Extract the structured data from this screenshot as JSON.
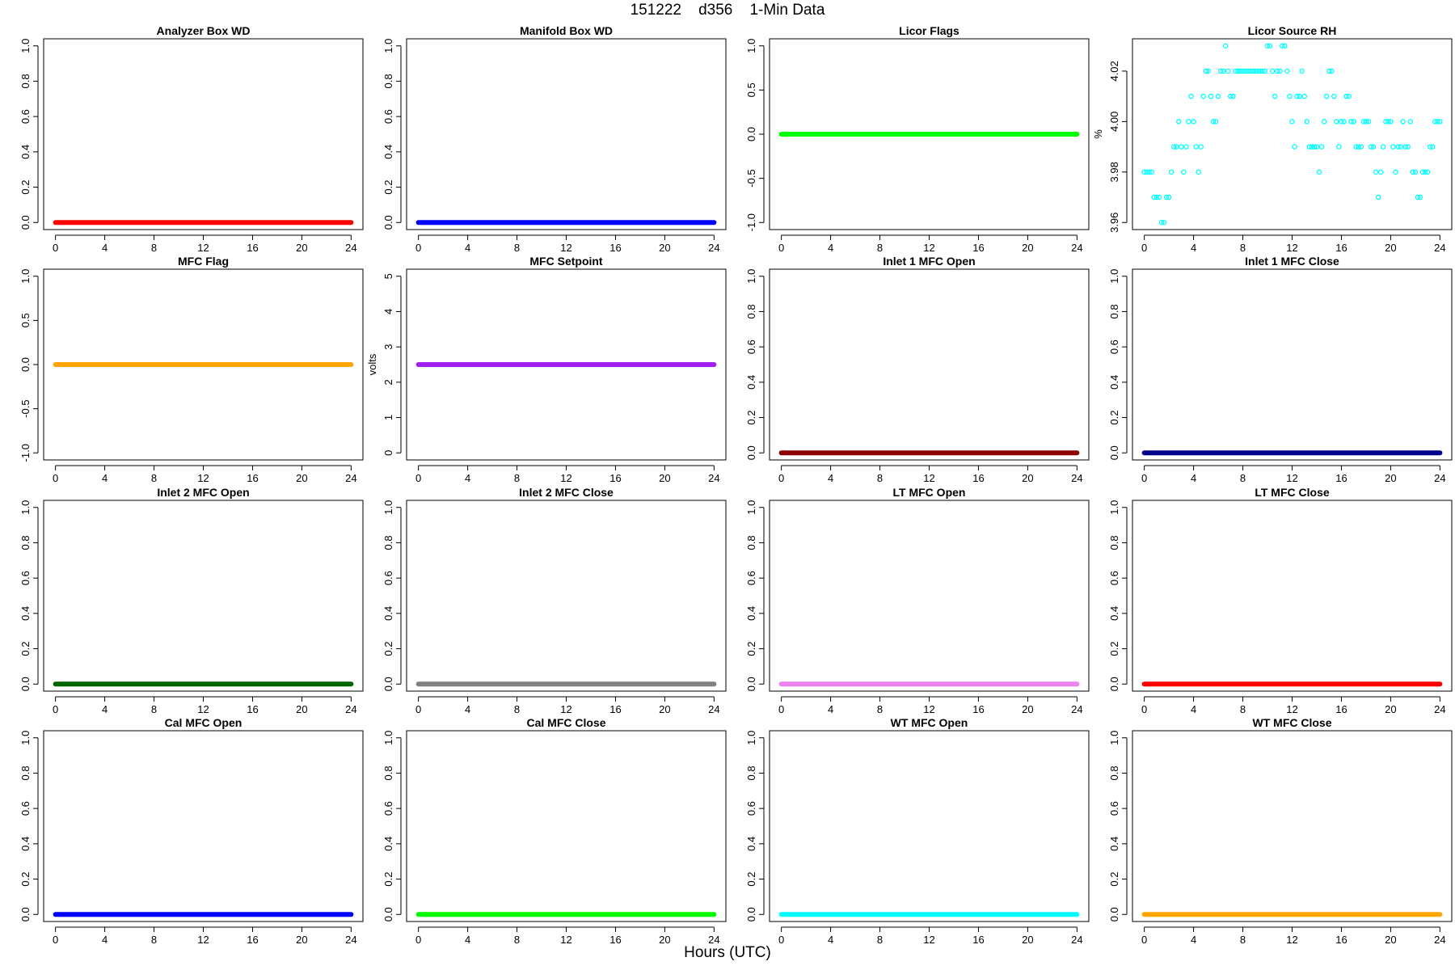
{
  "page": {
    "title": "151222    d356    1-Min Data",
    "xlabel": "Hours (UTC)"
  },
  "chart_data": [
    {
      "type": "line",
      "title": "Analyzer Box WD",
      "ylabel": "",
      "xlim": [
        0,
        24
      ],
      "xticks": [
        0,
        4,
        8,
        12,
        16,
        20,
        24
      ],
      "ylim": [
        0,
        1
      ],
      "yticks": [
        "0.0",
        "0.2",
        "0.4",
        "0.6",
        "0.8",
        "1.0"
      ],
      "series": [
        {
          "color": "#ff0000",
          "x": [
            0,
            24
          ],
          "y": [
            0,
            0
          ]
        }
      ]
    },
    {
      "type": "line",
      "title": "Manifold Box WD",
      "ylabel": "",
      "xlim": [
        0,
        24
      ],
      "xticks": [
        0,
        4,
        8,
        12,
        16,
        20,
        24
      ],
      "ylim": [
        0,
        1
      ],
      "yticks": [
        "0.0",
        "0.2",
        "0.4",
        "0.6",
        "0.8",
        "1.0"
      ],
      "series": [
        {
          "color": "#0000ff",
          "x": [
            0,
            24
          ],
          "y": [
            0,
            0
          ]
        }
      ]
    },
    {
      "type": "line",
      "title": "Licor Flags",
      "ylabel": "",
      "xlim": [
        0,
        24
      ],
      "xticks": [
        0,
        4,
        8,
        12,
        16,
        20,
        24
      ],
      "ylim": [
        -1,
        1
      ],
      "yticks": [
        "-1.0",
        "-0.5",
        "0.0",
        "0.5",
        "1.0"
      ],
      "series": [
        {
          "color": "#00ff00",
          "x": [
            0,
            24
          ],
          "y": [
            0,
            0
          ]
        }
      ]
    },
    {
      "type": "scatter",
      "title": "Licor Source RH",
      "ylabel": "%",
      "xlim": [
        0,
        24
      ],
      "xticks": [
        0,
        4,
        8,
        12,
        16,
        20,
        24
      ],
      "ylim": [
        3.96,
        4.03
      ],
      "yticks": [
        "3.96",
        "3.98",
        "4.00",
        "4.02"
      ],
      "series": [
        {
          "color": "#00ffff",
          "x": [
            0.0,
            0.2,
            0.4,
            0.6,
            0.8,
            1.0,
            1.2,
            1.4,
            1.6,
            1.8,
            2.0,
            2.2,
            2.4,
            2.6,
            2.8,
            3.0,
            3.2,
            3.4,
            3.6,
            3.8,
            4.0,
            4.2,
            4.4,
            4.6,
            4.8,
            5.0,
            5.2,
            5.4,
            5.6,
            5.8,
            6.0,
            6.2,
            6.4,
            6.6,
            6.8,
            7.0,
            7.2,
            7.4,
            7.6,
            7.8,
            8.0,
            8.2,
            8.4,
            8.6,
            8.8,
            9.0,
            9.2,
            9.4,
            9.6,
            9.8,
            10.0,
            10.2,
            10.4,
            10.6,
            10.8,
            11.0,
            11.2,
            11.4,
            11.6,
            11.8,
            12.0,
            12.2,
            12.4,
            12.6,
            12.8,
            13.0,
            13.2,
            13.4,
            13.6,
            13.8,
            14.0,
            14.2,
            14.4,
            14.6,
            14.8,
            15.0,
            15.2,
            15.4,
            15.6,
            15.8,
            16.0,
            16.2,
            16.4,
            16.6,
            16.8,
            17.0,
            17.2,
            17.4,
            17.6,
            17.8,
            18.0,
            18.2,
            18.4,
            18.6,
            18.8,
            19.0,
            19.2,
            19.4,
            19.6,
            19.8,
            20.0,
            20.2,
            20.4,
            20.6,
            20.8,
            21.0,
            21.2,
            21.4,
            21.6,
            21.8,
            22.0,
            22.2,
            22.4,
            22.6,
            22.8,
            23.0,
            23.2,
            23.4,
            23.6,
            23.8,
            24.0
          ],
          "y": [
            3.98,
            3.98,
            3.98,
            3.98,
            3.97,
            3.97,
            3.97,
            3.96,
            3.96,
            3.97,
            3.97,
            3.98,
            3.99,
            3.99,
            4.0,
            3.99,
            3.98,
            3.99,
            4.0,
            4.01,
            4.0,
            3.99,
            3.98,
            3.99,
            4.01,
            4.02,
            4.02,
            4.01,
            4.0,
            4.0,
            4.01,
            4.02,
            4.02,
            4.03,
            4.02,
            4.01,
            4.01,
            4.02,
            4.02,
            4.02,
            4.02,
            4.02,
            4.02,
            4.02,
            4.02,
            4.02,
            4.02,
            4.02,
            4.02,
            4.02,
            4.03,
            4.03,
            4.02,
            4.01,
            4.02,
            4.02,
            4.03,
            4.03,
            4.02,
            4.01,
            4.0,
            3.99,
            4.01,
            4.01,
            4.02,
            4.01,
            4.0,
            3.99,
            3.99,
            3.99,
            3.99,
            3.98,
            3.99,
            4.0,
            4.01,
            4.02,
            4.02,
            4.01,
            4.0,
            3.99,
            4.0,
            4.0,
            4.01,
            4.01,
            4.0,
            4.0,
            3.99,
            3.99,
            3.99,
            4.0,
            4.0,
            4.0,
            3.99,
            3.99,
            3.98,
            3.97,
            3.98,
            3.99,
            4.0,
            4.0,
            4.0,
            3.99,
            3.98,
            3.99,
            3.99,
            4.0,
            3.99,
            3.99,
            4.0,
            3.98,
            3.98,
            3.97,
            3.97,
            3.98,
            3.98,
            3.98,
            3.99,
            3.99,
            4.0,
            4.0,
            4.0
          ]
        }
      ]
    },
    {
      "type": "line",
      "title": "MFC Flag",
      "ylabel": "",
      "xlim": [
        0,
        24
      ],
      "xticks": [
        0,
        4,
        8,
        12,
        16,
        20,
        24
      ],
      "ylim": [
        -1,
        1
      ],
      "yticks": [
        "-1.0",
        "-0.5",
        "0.0",
        "0.5",
        "1.0"
      ],
      "series": [
        {
          "color": "#ffa500",
          "x": [
            0,
            24
          ],
          "y": [
            0,
            0
          ]
        }
      ]
    },
    {
      "type": "line",
      "title": "MFC Setpoint",
      "ylabel": "volts",
      "xlim": [
        0,
        24
      ],
      "xticks": [
        0,
        4,
        8,
        12,
        16,
        20,
        24
      ],
      "ylim": [
        0,
        5
      ],
      "yticks": [
        "0",
        "1",
        "2",
        "3",
        "4",
        "5"
      ],
      "series": [
        {
          "color": "#a020f0",
          "x": [
            0,
            24
          ],
          "y": [
            2.5,
            2.5
          ]
        }
      ]
    },
    {
      "type": "line",
      "title": "Inlet 1 MFC Open",
      "ylabel": "",
      "xlim": [
        0,
        24
      ],
      "xticks": [
        0,
        4,
        8,
        12,
        16,
        20,
        24
      ],
      "ylim": [
        0,
        1
      ],
      "yticks": [
        "0.0",
        "0.2",
        "0.4",
        "0.6",
        "0.8",
        "1.0"
      ],
      "series": [
        {
          "color": "#8b0000",
          "x": [
            0,
            24
          ],
          "y": [
            0,
            0
          ]
        }
      ]
    },
    {
      "type": "line",
      "title": "Inlet 1 MFC Close",
      "ylabel": "",
      "xlim": [
        0,
        24
      ],
      "xticks": [
        0,
        4,
        8,
        12,
        16,
        20,
        24
      ],
      "ylim": [
        0,
        1
      ],
      "yticks": [
        "0.0",
        "0.2",
        "0.4",
        "0.6",
        "0.8",
        "1.0"
      ],
      "series": [
        {
          "color": "#00008b",
          "x": [
            0,
            24
          ],
          "y": [
            0,
            0
          ]
        }
      ]
    },
    {
      "type": "line",
      "title": "Inlet 2 MFC Open",
      "ylabel": "",
      "xlim": [
        0,
        24
      ],
      "xticks": [
        0,
        4,
        8,
        12,
        16,
        20,
        24
      ],
      "ylim": [
        0,
        1
      ],
      "yticks": [
        "0.0",
        "0.2",
        "0.4",
        "0.6",
        "0.8",
        "1.0"
      ],
      "series": [
        {
          "color": "#006400",
          "x": [
            0,
            24
          ],
          "y": [
            0,
            0
          ]
        }
      ]
    },
    {
      "type": "line",
      "title": "Inlet 2 MFC Close",
      "ylabel": "",
      "xlim": [
        0,
        24
      ],
      "xticks": [
        0,
        4,
        8,
        12,
        16,
        20,
        24
      ],
      "ylim": [
        0,
        1
      ],
      "yticks": [
        "0.0",
        "0.2",
        "0.4",
        "0.6",
        "0.8",
        "1.0"
      ],
      "series": [
        {
          "color": "#808080",
          "x": [
            0,
            24
          ],
          "y": [
            0,
            0
          ]
        }
      ]
    },
    {
      "type": "line",
      "title": "LT MFC Open",
      "ylabel": "",
      "xlim": [
        0,
        24
      ],
      "xticks": [
        0,
        4,
        8,
        12,
        16,
        20,
        24
      ],
      "ylim": [
        0,
        1
      ],
      "yticks": [
        "0.0",
        "0.2",
        "0.4",
        "0.6",
        "0.8",
        "1.0"
      ],
      "series": [
        {
          "color": "#ee82ee",
          "x": [
            0,
            24
          ],
          "y": [
            0,
            0
          ]
        }
      ]
    },
    {
      "type": "line",
      "title": "LT MFC Close",
      "ylabel": "",
      "xlim": [
        0,
        24
      ],
      "xticks": [
        0,
        4,
        8,
        12,
        16,
        20,
        24
      ],
      "ylim": [
        0,
        1
      ],
      "yticks": [
        "0.0",
        "0.2",
        "0.4",
        "0.6",
        "0.8",
        "1.0"
      ],
      "series": [
        {
          "color": "#ff0000",
          "x": [
            0,
            24
          ],
          "y": [
            0,
            0
          ]
        }
      ]
    },
    {
      "type": "line",
      "title": "Cal MFC Open",
      "ylabel": "",
      "xlim": [
        0,
        24
      ],
      "xticks": [
        0,
        4,
        8,
        12,
        16,
        20,
        24
      ],
      "ylim": [
        0,
        1
      ],
      "yticks": [
        "0.0",
        "0.2",
        "0.4",
        "0.6",
        "0.8",
        "1.0"
      ],
      "series": [
        {
          "color": "#0000ff",
          "x": [
            0,
            24
          ],
          "y": [
            0,
            0
          ]
        }
      ]
    },
    {
      "type": "line",
      "title": "Cal MFC Close",
      "ylabel": "",
      "xlim": [
        0,
        24
      ],
      "xticks": [
        0,
        4,
        8,
        12,
        16,
        20,
        24
      ],
      "ylim": [
        0,
        1
      ],
      "yticks": [
        "0.0",
        "0.2",
        "0.4",
        "0.6",
        "0.8",
        "1.0"
      ],
      "series": [
        {
          "color": "#00ff00",
          "x": [
            0,
            24
          ],
          "y": [
            0,
            0
          ]
        }
      ]
    },
    {
      "type": "line",
      "title": "WT MFC Open",
      "ylabel": "",
      "xlim": [
        0,
        24
      ],
      "xticks": [
        0,
        4,
        8,
        12,
        16,
        20,
        24
      ],
      "ylim": [
        0,
        1
      ],
      "yticks": [
        "0.0",
        "0.2",
        "0.4",
        "0.6",
        "0.8",
        "1.0"
      ],
      "series": [
        {
          "color": "#00ffff",
          "x": [
            0,
            24
          ],
          "y": [
            0,
            0
          ]
        }
      ]
    },
    {
      "type": "line",
      "title": "WT MFC Close",
      "ylabel": "",
      "xlim": [
        0,
        24
      ],
      "xticks": [
        0,
        4,
        8,
        12,
        16,
        20,
        24
      ],
      "ylim": [
        0,
        1
      ],
      "yticks": [
        "0.0",
        "0.2",
        "0.4",
        "0.6",
        "0.8",
        "1.0"
      ],
      "series": [
        {
          "color": "#ffa500",
          "x": [
            0,
            24
          ],
          "y": [
            0,
            0
          ]
        }
      ]
    }
  ]
}
